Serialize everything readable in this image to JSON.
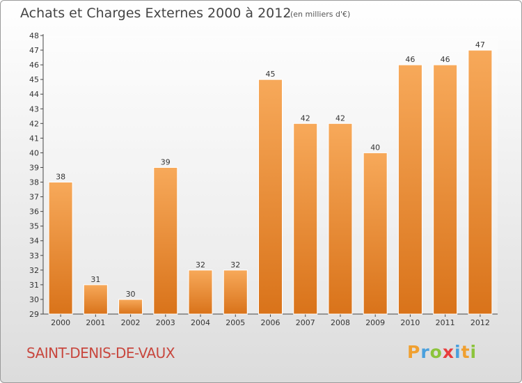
{
  "title": "Achats et Charges Externes 2000 à 2012",
  "unit": "(en milliers d'€)",
  "commune": "SAINT-DENIS-DE-VAUX",
  "logo": {
    "letters": [
      "P",
      "r",
      "o",
      "x",
      "i",
      "t",
      "i"
    ],
    "colors": [
      "#f0a030",
      "#4aa0dd",
      "#8cc43c",
      "#e83c3c",
      "#4aa0dd",
      "#f0a030",
      "#8cc43c"
    ]
  },
  "colors": {
    "bar_light": "#f7a95a",
    "bar_dark": "#d9731a",
    "title": "#444444",
    "commune": "#c8473e"
  },
  "chart_data": {
    "type": "bar",
    "categories": [
      "2000",
      "2001",
      "2002",
      "2003",
      "2004",
      "2005",
      "2006",
      "2007",
      "2008",
      "2009",
      "2010",
      "2011",
      "2012"
    ],
    "values": [
      38,
      31,
      30,
      39,
      32,
      32,
      45,
      42,
      42,
      40,
      46,
      46,
      47
    ],
    "title": "Achats et Charges Externes 2000 à 2012",
    "xlabel": "",
    "ylabel": "",
    "ylim": [
      29,
      48
    ],
    "yticks": [
      29,
      30,
      31,
      32,
      33,
      34,
      35,
      36,
      37,
      38,
      39,
      40,
      41,
      42,
      43,
      44,
      45,
      46,
      47,
      48
    ],
    "grid": false,
    "data_labels": true
  }
}
